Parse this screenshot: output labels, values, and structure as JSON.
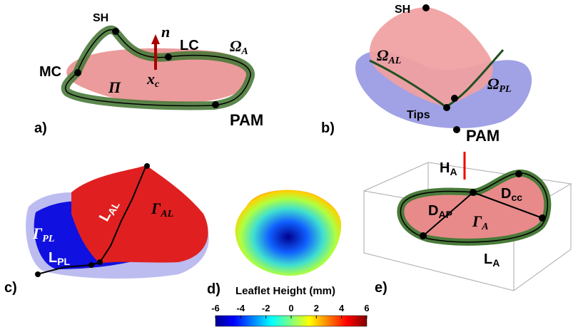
{
  "panels": {
    "a": {
      "label": "a)",
      "sh": "SH",
      "n": "n",
      "lc": "LC",
      "omega": {
        "base": "Ω",
        "sub": "A"
      },
      "mc": "MC",
      "xc": {
        "base": "x",
        "sub": "c"
      },
      "pi": "Π",
      "pam": "PAM"
    },
    "b": {
      "label": "b)",
      "sh": "SH",
      "omega_al": {
        "base": "Ω",
        "sub": "AL"
      },
      "omega_pl": {
        "base": "Ω",
        "sub": "PL"
      },
      "tips": "Tips",
      "pam": "PAM"
    },
    "c": {
      "label": "c)",
      "gamma_pl": {
        "base": "Γ",
        "sub": "PL"
      },
      "l_al": {
        "base": "L",
        "sub": "AL"
      },
      "gamma_al": {
        "base": "Γ",
        "sub": "AL"
      },
      "l_pl": {
        "base": "L",
        "sub": "PL"
      }
    },
    "d": {
      "label": "d)"
    },
    "e": {
      "label": "e)",
      "h_a": {
        "base": "H",
        "sub": "A"
      },
      "d_ap": {
        "base": "D",
        "sub": "AP"
      },
      "d_cc": {
        "base": "D",
        "sub": "cc"
      },
      "gamma_a": {
        "base": "Γ",
        "sub": "A"
      },
      "l_a": {
        "base": "L",
        "sub": "A"
      }
    }
  },
  "colorbar": {
    "title": "Leaflet Height (mm)",
    "lim": [
      -6,
      6
    ],
    "ticks": [
      -6,
      -4,
      -2,
      0,
      2,
      4,
      6
    ]
  }
}
